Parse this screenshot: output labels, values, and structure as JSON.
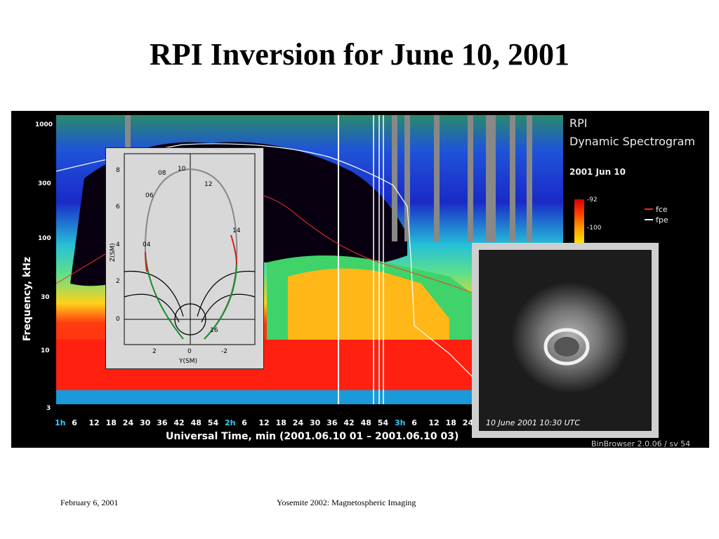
{
  "slide": {
    "title": "RPI Inversion for June 10, 2001",
    "footer_left": "February 6, 2001",
    "footer_center": "Yosemite 2002: Magnetospheric Imaging"
  },
  "spectrogram": {
    "title_line1": "RPI",
    "title_line2": "Dynamic Spectrogram",
    "date": "2001 Jun 10",
    "y_axis_title": "Frequency, kHz",
    "y_ticks": [
      "1000",
      "300",
      "100",
      "30",
      "10",
      "3"
    ],
    "colorbar_ticks": [
      "-92",
      "-100"
    ],
    "legend": [
      {
        "label": "fce",
        "color": "#ff2020"
      },
      {
        "label": "fpe",
        "color": "#ffffff"
      }
    ],
    "x_axis_title": "Universal Time, min (2001.06.10 01 – 2001.06.10 03)",
    "x_ticks": [
      "1h",
      "6",
      "12",
      "18",
      "24",
      "30",
      "36",
      "42",
      "48",
      "54",
      "2h",
      "6",
      "12",
      "18",
      "24",
      "30",
      "36",
      "42",
      "48",
      "54",
      "3h",
      "6",
      "12",
      "18",
      "24"
    ],
    "version": "BinBrowser 2.0.06 / sv 54"
  },
  "orbit_inset": {
    "y_axis_label": "Z(SM)",
    "x_axis_label": "Y(SM)",
    "y_ticks": [
      "8",
      "6",
      "4",
      "2",
      "0"
    ],
    "x_ticks": [
      "2",
      "0",
      "-2"
    ],
    "orbit_hour_labels": [
      "10",
      "08",
      "12",
      "06",
      "14",
      "04",
      "16"
    ]
  },
  "image_inset": {
    "caption": "10 June 2001 10:30 UTC"
  }
}
